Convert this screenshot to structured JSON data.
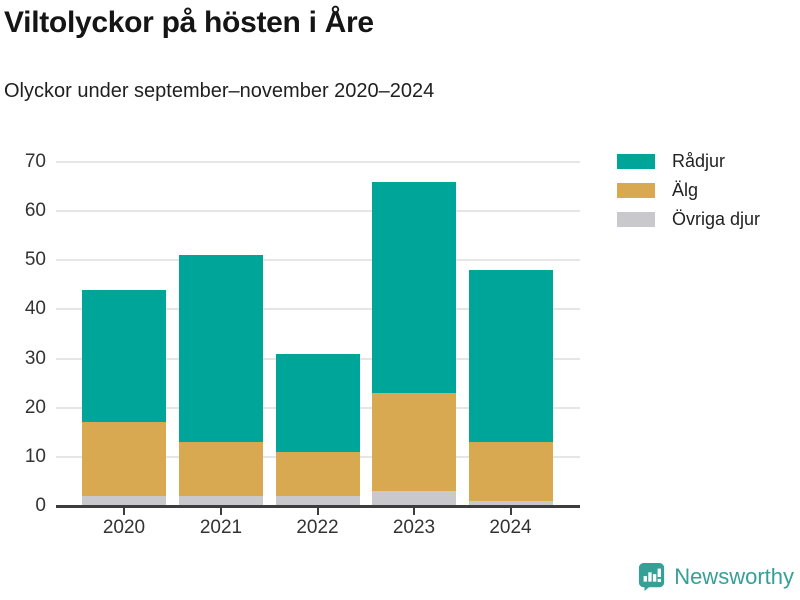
{
  "header": {
    "title": "Viltolyckor på hösten i Åre",
    "subtitle": "Olyckor under september–november 2020–2024"
  },
  "chart_data": {
    "type": "bar",
    "stacked": true,
    "title": "Viltolyckor på hösten i Åre",
    "subtitle": "Olyckor under september–november 2020–2024",
    "categories": [
      "2020",
      "2021",
      "2022",
      "2023",
      "2024"
    ],
    "series": [
      {
        "name": "Rådjur",
        "slug": "radjur",
        "color": "#00a59a",
        "values": [
          27,
          38,
          20,
          43,
          35
        ]
      },
      {
        "name": "Älg",
        "slug": "alg",
        "color": "#d9a952",
        "values": [
          15,
          11,
          9,
          20,
          12
        ]
      },
      {
        "name": "Övriga djur",
        "slug": "ovriga-djur",
        "color": "#c9c9cd",
        "values": [
          2,
          2,
          2,
          3,
          1
        ]
      }
    ],
    "stack_totals": [
      44,
      51,
      31,
      66,
      48
    ],
    "xlabel": "",
    "ylabel": "",
    "ylim": [
      0,
      70
    ],
    "yticks": [
      0,
      10,
      20,
      30,
      40,
      50,
      60,
      70
    ],
    "grid": true,
    "legend_position": "right"
  },
  "footer": {
    "brand": "Newsworthy",
    "brand_color": "#35a095"
  }
}
